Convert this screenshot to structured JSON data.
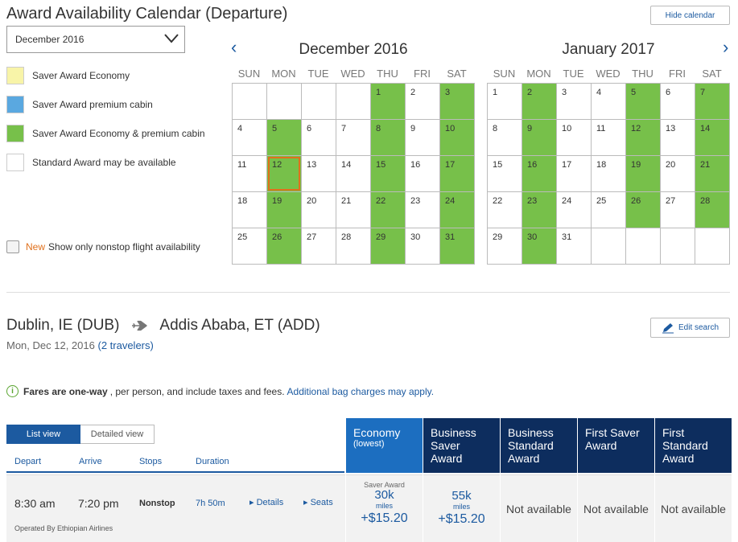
{
  "header": {
    "title": "Award Availability Calendar (Departure)",
    "hide_calendar": "Hide calendar",
    "month_select_value": "December 2016"
  },
  "legend": [
    {
      "label": "Saver Award Economy",
      "color": "#f8f4a8"
    },
    {
      "label": "Saver Award premium cabin",
      "color": "#5aa8e0"
    },
    {
      "label": "Saver Award Economy & premium cabin",
      "color": "#77c04a"
    },
    {
      "label": "Standard Award may be available",
      "color": "#ffffff"
    }
  ],
  "nonstop": {
    "new_tag": "New",
    "label": "Show only nonstop flight availability"
  },
  "weekdays": [
    "SUN",
    "MON",
    "TUE",
    "WED",
    "THU",
    "FRI",
    "SAT"
  ],
  "calendars": [
    {
      "title": "December 2016",
      "weeks": [
        [
          {
            "d": ""
          },
          {
            "d": ""
          },
          {
            "d": ""
          },
          {
            "d": ""
          },
          {
            "d": "1",
            "g": 1
          },
          {
            "d": "2"
          },
          {
            "d": "3",
            "g": 1
          }
        ],
        [
          {
            "d": "4"
          },
          {
            "d": "5",
            "g": 1
          },
          {
            "d": "6"
          },
          {
            "d": "7"
          },
          {
            "d": "8",
            "g": 1
          },
          {
            "d": "9"
          },
          {
            "d": "10",
            "g": 1
          }
        ],
        [
          {
            "d": "11"
          },
          {
            "d": "12",
            "g": 1,
            "sel": 1
          },
          {
            "d": "13"
          },
          {
            "d": "14"
          },
          {
            "d": "15",
            "g": 1
          },
          {
            "d": "16"
          },
          {
            "d": "17",
            "g": 1
          }
        ],
        [
          {
            "d": "18"
          },
          {
            "d": "19",
            "g": 1
          },
          {
            "d": "20"
          },
          {
            "d": "21"
          },
          {
            "d": "22",
            "g": 1
          },
          {
            "d": "23"
          },
          {
            "d": "24",
            "g": 1
          }
        ],
        [
          {
            "d": "25"
          },
          {
            "d": "26",
            "g": 1
          },
          {
            "d": "27"
          },
          {
            "d": "28"
          },
          {
            "d": "29",
            "g": 1
          },
          {
            "d": "30"
          },
          {
            "d": "31",
            "g": 1
          }
        ]
      ]
    },
    {
      "title": "January 2017",
      "weeks": [
        [
          {
            "d": "1"
          },
          {
            "d": "2",
            "g": 1
          },
          {
            "d": "3"
          },
          {
            "d": "4"
          },
          {
            "d": "5",
            "g": 1
          },
          {
            "d": "6"
          },
          {
            "d": "7",
            "g": 1
          }
        ],
        [
          {
            "d": "8"
          },
          {
            "d": "9",
            "g": 1
          },
          {
            "d": "10"
          },
          {
            "d": "11"
          },
          {
            "d": "12",
            "g": 1
          },
          {
            "d": "13"
          },
          {
            "d": "14",
            "g": 1
          }
        ],
        [
          {
            "d": "15"
          },
          {
            "d": "16",
            "g": 1
          },
          {
            "d": "17"
          },
          {
            "d": "18"
          },
          {
            "d": "19",
            "g": 1
          },
          {
            "d": "20"
          },
          {
            "d": "21",
            "g": 1
          }
        ],
        [
          {
            "d": "22"
          },
          {
            "d": "23",
            "g": 1
          },
          {
            "d": "24"
          },
          {
            "d": "25"
          },
          {
            "d": "26",
            "g": 1
          },
          {
            "d": "27"
          },
          {
            "d": "28",
            "g": 1
          }
        ],
        [
          {
            "d": "29"
          },
          {
            "d": "30",
            "g": 1
          },
          {
            "d": "31"
          },
          {
            "d": ""
          },
          {
            "d": ""
          },
          {
            "d": ""
          },
          {
            "d": ""
          }
        ]
      ]
    }
  ],
  "route": {
    "origin": "Dublin, IE (DUB)",
    "destination": "Addis Ababa, ET (ADD)",
    "date": "Mon, Dec 12, 2016",
    "travelers": "(2 travelers)",
    "edit_search": "Edit search"
  },
  "fares_note": {
    "bold": "Fares are one-way",
    "text": ", per person, and include taxes and fees.",
    "link": "Additional bag charges may apply."
  },
  "views": {
    "list": "List view",
    "detailed": "Detailed view"
  },
  "columns": {
    "depart": "Depart",
    "arrive": "Arrive",
    "stops": "Stops",
    "duration": "Duration"
  },
  "cabins": [
    {
      "name": "Economy",
      "sub": "(lowest)"
    },
    {
      "name": "Business Saver Award",
      "sub": ""
    },
    {
      "name": "Business Standard Award",
      "sub": ""
    },
    {
      "name": "First Saver Award",
      "sub": ""
    },
    {
      "name": "First Standard Award",
      "sub": ""
    }
  ],
  "flight": {
    "depart": "8:30 am",
    "arrive": "7:20 pm",
    "stops": "Nonstop",
    "duration": "7h 50m",
    "details": "Details",
    "seats": "Seats",
    "operated_by": "Operated By Ethiopian Airlines",
    "fares": [
      {
        "type": "Saver Award",
        "miles": "30k",
        "miles_label": "miles",
        "fee": "+$15.20"
      },
      {
        "type": "",
        "miles": "55k",
        "miles_label": "miles",
        "fee": "+$15.20"
      },
      {
        "na": "Not available"
      },
      {
        "na": "Not available"
      },
      {
        "na": "Not available"
      }
    ]
  }
}
